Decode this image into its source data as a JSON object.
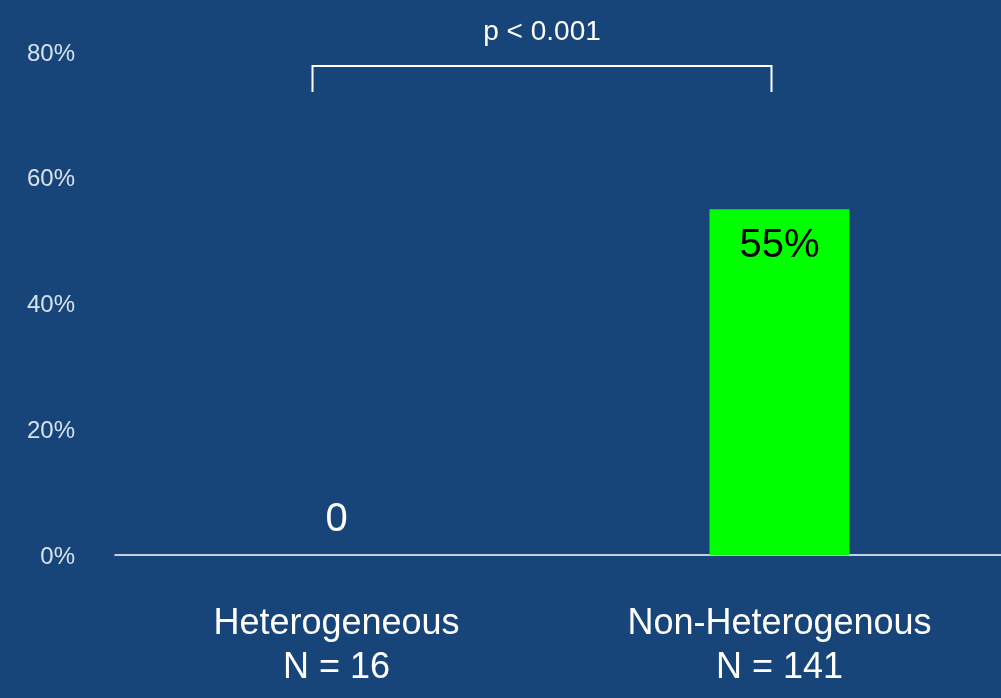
{
  "chart_data": {
    "type": "bar",
    "categories": [
      "Heterogeneous\nN = 16",
      "Non-Heterogenous\nN = 141"
    ],
    "values": [
      0,
      55
    ],
    "color": "#00ff00",
    "value_labels": [
      "0",
      "55%"
    ],
    "ylim": [
      0,
      80
    ],
    "yticks": [
      {
        "value": 0,
        "label": "0%"
      },
      {
        "value": 20,
        "label": "20%"
      },
      {
        "value": 40,
        "label": "40%"
      },
      {
        "value": 60,
        "label": "60%"
      },
      {
        "value": 80,
        "label": "80%"
      }
    ],
    "grid": false,
    "annotations": [
      "p < 0.001"
    ]
  }
}
